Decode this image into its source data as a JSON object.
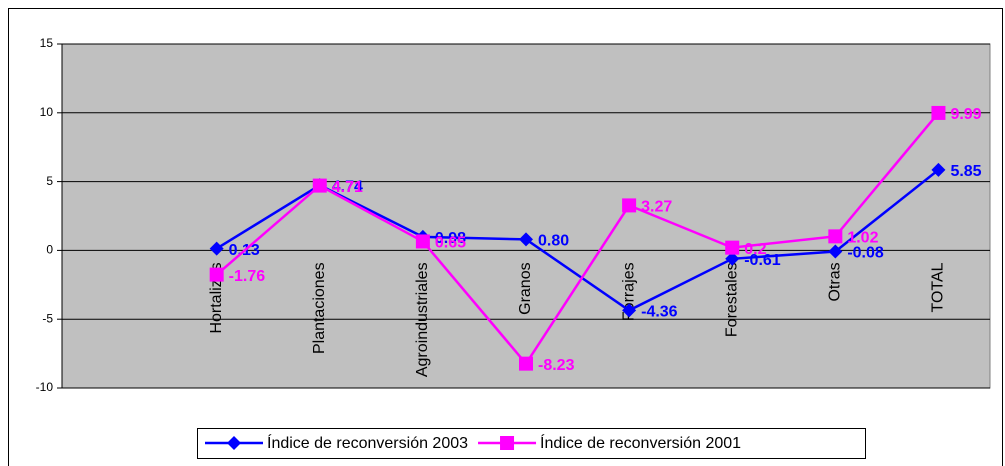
{
  "chart_data": {
    "type": "line",
    "categories": [
      null,
      "Hortalizas",
      "Plantaciones",
      "Agroindustriales",
      "Granos",
      "Forrajes",
      "Forestales",
      "Otras",
      "TOTAL"
    ],
    "series": [
      {
        "name": "Índice de reconversión 2003",
        "color": "#0000ff",
        "marker": "diamond",
        "values": [
          null,
          0.13,
          4.74,
          0.98,
          0.8,
          -4.36,
          -0.61,
          -0.08,
          5.85
        ],
        "value_labels": [
          null,
          "0.13",
          "4.74",
          "0.98",
          "0.80",
          "-4.36",
          "-0.61",
          "-0.08",
          "5.85"
        ]
      },
      {
        "name": "Índice de reconversión 2001",
        "color": "#ff00ff",
        "marker": "square",
        "values": [
          null,
          -1.76,
          4.71,
          0.65,
          -8.23,
          3.27,
          0.2,
          1.02,
          9.99
        ],
        "value_labels": [
          null,
          "-1.76",
          "4.71",
          "0.65",
          "-8.23",
          "3.27",
          "0.2",
          "1.02",
          "9.99"
        ]
      }
    ],
    "ylim": [
      -10,
      15
    ],
    "yticks": [
      -10,
      -5,
      0,
      5,
      10,
      15
    ],
    "grid": true,
    "legend": "bottom"
  }
}
